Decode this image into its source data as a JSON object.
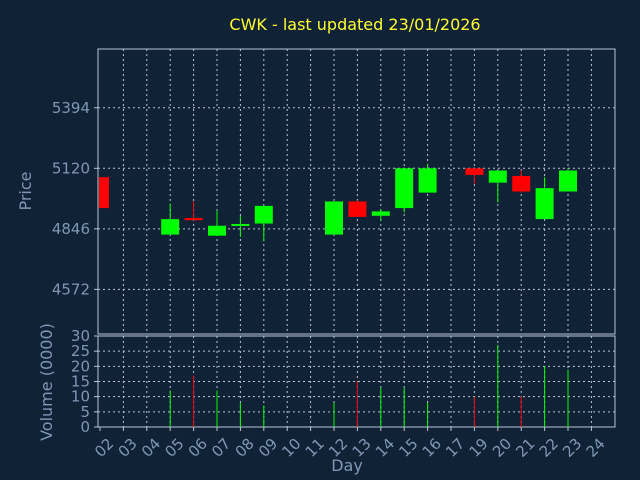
{
  "chart_data": {
    "type": "candlestick",
    "title": "CWK - last updated 23/01/2026",
    "price_panel": {
      "ylabel": "Price",
      "ylim": [
        4370,
        5660
      ],
      "yticks": [
        4572,
        4846,
        5120,
        5394
      ],
      "grid": true
    },
    "volume_panel": {
      "ylabel": "Volume (0000)",
      "ylim": [
        0,
        30
      ],
      "yticks": [
        0,
        5,
        10,
        15,
        20,
        25,
        30
      ],
      "grid": true
    },
    "xlabel": "Day",
    "x_ticks": [
      "02",
      "03",
      "04",
      "05",
      "06",
      "07",
      "08",
      "09",
      "10",
      "11",
      "12",
      "13",
      "14",
      "15",
      "16",
      "17",
      "19",
      "20",
      "21",
      "22",
      "23",
      "24"
    ],
    "candles": [
      {
        "day": "02",
        "open": 5080,
        "high": 5080,
        "low": 4940,
        "close": 4940,
        "volume": 0
      },
      {
        "day": "05",
        "open": 4820,
        "high": 4960,
        "low": 4820,
        "close": 4890,
        "volume": 12
      },
      {
        "day": "06",
        "open": 4895,
        "high": 4970,
        "low": 4885,
        "close": 4885,
        "volume": 17
      },
      {
        "day": "07",
        "open": 4815,
        "high": 4930,
        "low": 4815,
        "close": 4860,
        "volume": 12
      },
      {
        "day": "08",
        "open": 4862,
        "high": 4905,
        "low": 4810,
        "close": 4868,
        "volume": 8
      },
      {
        "day": "09",
        "open": 4870,
        "high": 4950,
        "low": 4790,
        "close": 4950,
        "volume": 7
      },
      {
        "day": "12",
        "open": 4820,
        "high": 4970,
        "low": 4820,
        "close": 4970,
        "volume": 8
      },
      {
        "day": "13",
        "open": 4970,
        "high": 4975,
        "low": 4900,
        "close": 4900,
        "volume": 15
      },
      {
        "day": "14",
        "open": 4905,
        "high": 4935,
        "low": 4885,
        "close": 4925,
        "volume": 13
      },
      {
        "day": "15",
        "open": 4940,
        "high": 5120,
        "low": 4920,
        "close": 5120,
        "volume": 13
      },
      {
        "day": "16",
        "open": 5010,
        "high": 5140,
        "low": 5010,
        "close": 5120,
        "volume": 8
      },
      {
        "day": "19",
        "open": 5120,
        "high": 5120,
        "low": 5050,
        "close": 5090,
        "volume": 10
      },
      {
        "day": "20",
        "open": 5055,
        "high": 5110,
        "low": 4965,
        "close": 5110,
        "volume": 27
      },
      {
        "day": "21",
        "open": 5085,
        "high": 5110,
        "low": 5010,
        "close": 5015,
        "volume": 10
      },
      {
        "day": "22",
        "open": 4890,
        "high": 5080,
        "low": 4890,
        "close": 5030,
        "volume": 20
      },
      {
        "day": "23",
        "open": 5015,
        "high": 5120,
        "low": 5015,
        "close": 5110,
        "volume": 19
      }
    ],
    "colors": {
      "up": "#00ff00",
      "down": "#ff0000",
      "background": "#0f2236",
      "grid": "#b8c6d6",
      "title": "#ffff33",
      "axis_text": "#7f98b4"
    }
  }
}
